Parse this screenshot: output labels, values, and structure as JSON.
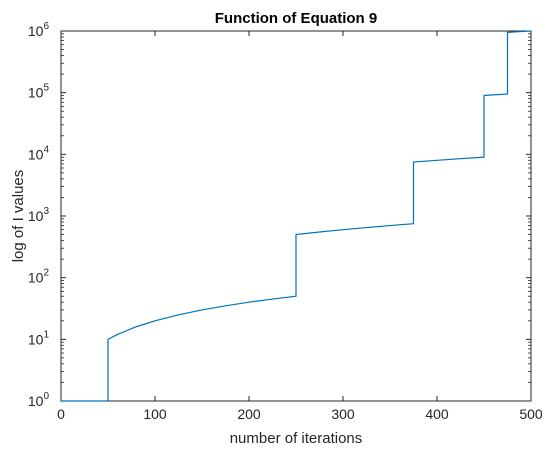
{
  "chart_data": {
    "type": "line",
    "title": "Function of Equation 9",
    "xlabel": "number of iterations",
    "ylabel": "log of I values",
    "xlim": [
      0,
      500
    ],
    "ylim": [
      1,
      1000000
    ],
    "yscale": "log",
    "grid": false,
    "legend": "none",
    "x_ticks": [
      "0",
      "100",
      "200",
      "300",
      "400",
      "500"
    ],
    "y_ticks": [
      {
        "base": "10",
        "exp": "0"
      },
      {
        "base": "10",
        "exp": "1"
      },
      {
        "base": "10",
        "exp": "2"
      },
      {
        "base": "10",
        "exp": "3"
      },
      {
        "base": "10",
        "exp": "4"
      },
      {
        "base": "10",
        "exp": "5"
      },
      {
        "base": "10",
        "exp": "6"
      }
    ],
    "series": [
      {
        "color": "#0072BD",
        "x": [
          0,
          50,
          50,
          60,
          80,
          100,
          125,
          150,
          175,
          200,
          225,
          250,
          250,
          275,
          300,
          325,
          350,
          375,
          375,
          400,
          425,
          450,
          450,
          462,
          475,
          475,
          487,
          500
        ],
        "y": [
          1,
          1,
          10,
          12,
          16,
          20,
          25,
          30,
          35,
          40,
          45,
          50,
          500,
          550,
          600,
          650,
          700,
          750,
          7500,
          8000,
          8500,
          9000,
          90000,
          92500,
          95000,
          950000,
          975000,
          1000000
        ]
      }
    ]
  }
}
